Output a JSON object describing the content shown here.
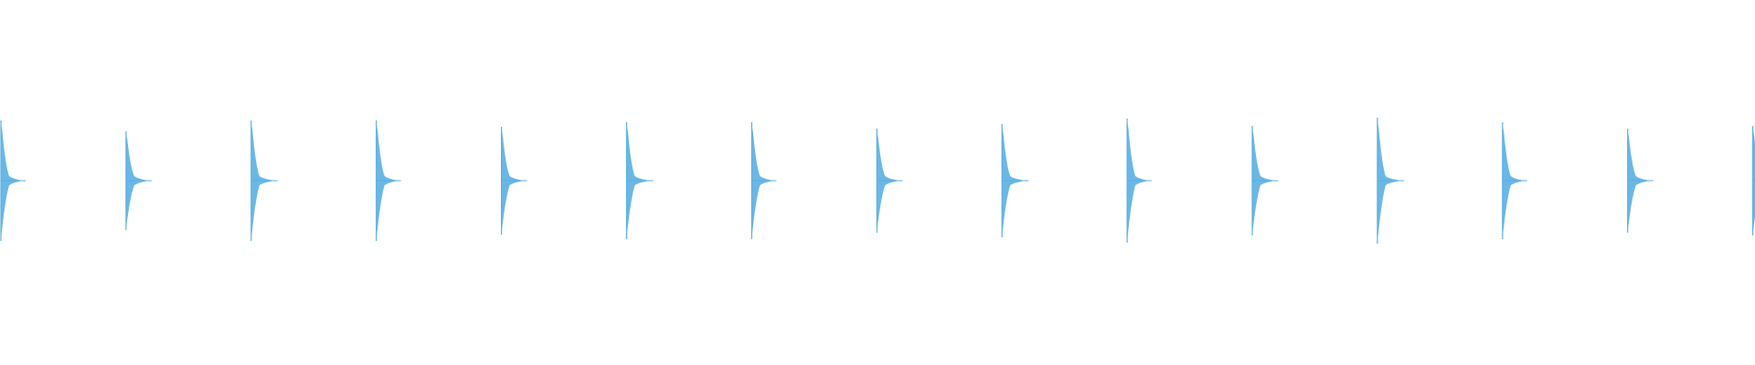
{
  "waveform": {
    "color": "#5aafe3"
  }
}
